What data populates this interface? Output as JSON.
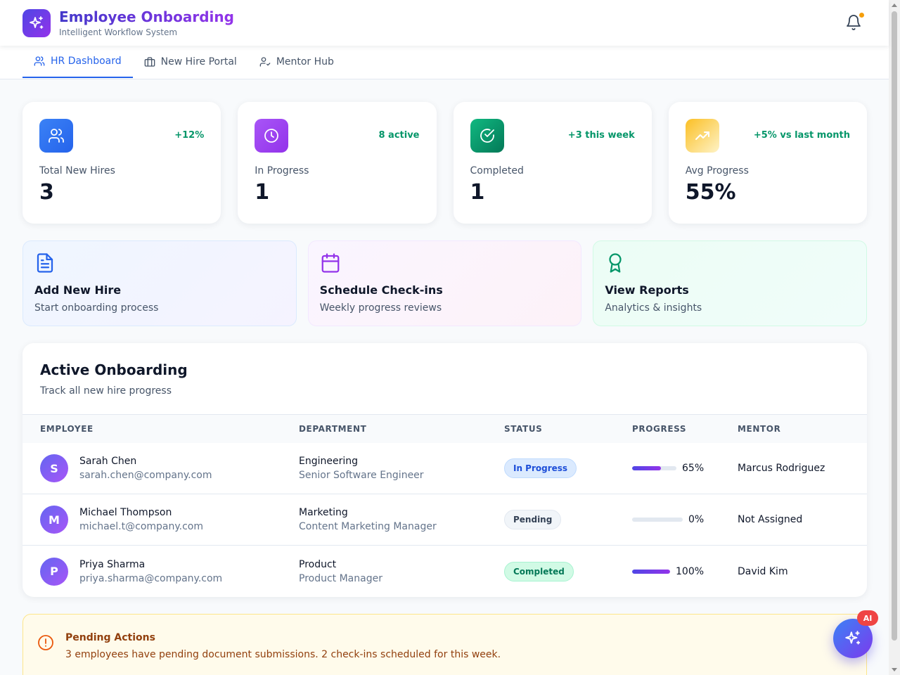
{
  "app": {
    "title": "Employee Onboarding",
    "subtitle": "Intelligent Workflow System",
    "logo_icon": "sparkles-icon",
    "notification_icon": "bell-icon"
  },
  "tabs": [
    {
      "label": "HR Dashboard",
      "icon": "users-icon",
      "active": true
    },
    {
      "label": "New Hire Portal",
      "icon": "briefcase-icon",
      "active": false
    },
    {
      "label": "Mentor Hub",
      "icon": "user-check-icon",
      "active": false
    }
  ],
  "stats": [
    {
      "label": "Total New Hires",
      "value": "3",
      "delta": "+12%",
      "icon": "users-icon",
      "color": "#3b82f6"
    },
    {
      "label": "In Progress",
      "value": "1",
      "delta": "8 active",
      "icon": "clock-icon",
      "color": "#a855f7"
    },
    {
      "label": "Completed",
      "value": "1",
      "delta": "+3 this week",
      "icon": "check-circle-icon",
      "color": "#059669"
    },
    {
      "label": "Avg Progress",
      "value": "55%",
      "delta": "+5% vs last month",
      "icon": "trending-up-icon",
      "color": "#f59e0b"
    }
  ],
  "actions": [
    {
      "title": "Add New Hire",
      "subtitle": "Start onboarding process",
      "icon": "document-icon"
    },
    {
      "title": "Schedule Check-ins",
      "subtitle": "Weekly progress reviews",
      "icon": "calendar-icon"
    },
    {
      "title": "View Reports",
      "subtitle": "Analytics & insights",
      "icon": "award-icon"
    }
  ],
  "table": {
    "title": "Active Onboarding",
    "subtitle": "Track all new hire progress",
    "columns": [
      "EMPLOYEE",
      "DEPARTMENT",
      "STATUS",
      "PROGRESS",
      "MENTOR"
    ],
    "rows": [
      {
        "initial": "S",
        "name": "Sarah Chen",
        "email": "sarah.chen@company.com",
        "department": "Engineering",
        "role": "Senior Software Engineer",
        "status": "In Progress",
        "progress": 65,
        "progress_label": "65%",
        "mentor": "Marcus Rodriguez"
      },
      {
        "initial": "M",
        "name": "Michael Thompson",
        "email": "michael.t@company.com",
        "department": "Marketing",
        "role": "Content Marketing Manager",
        "status": "Pending",
        "progress": 0,
        "progress_label": "0%",
        "mentor": "Not Assigned"
      },
      {
        "initial": "P",
        "name": "Priya Sharma",
        "email": "priya.sharma@company.com",
        "department": "Product",
        "role": "Product Manager",
        "status": "Completed",
        "progress": 100,
        "progress_label": "100%",
        "mentor": "David Kim"
      }
    ]
  },
  "alert": {
    "title": "Pending Actions",
    "text": "3 employees have pending document submissions. 2 check-ins scheduled for this week.",
    "icon": "alert-circle-icon"
  },
  "fab": {
    "badge": "AI",
    "icon": "sparkles-icon"
  }
}
